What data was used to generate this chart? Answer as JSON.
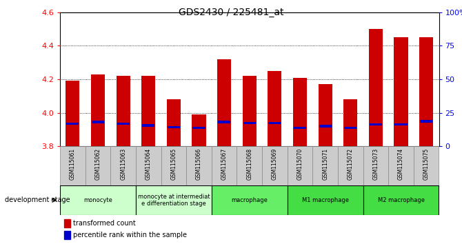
{
  "title": "GDS2430 / 225481_at",
  "samples": [
    "GSM115061",
    "GSM115062",
    "GSM115063",
    "GSM115064",
    "GSM115065",
    "GSM115066",
    "GSM115067",
    "GSM115068",
    "GSM115069",
    "GSM115070",
    "GSM115071",
    "GSM115072",
    "GSM115073",
    "GSM115074",
    "GSM115075"
  ],
  "transformed_count": [
    4.19,
    4.23,
    4.22,
    4.22,
    4.08,
    3.99,
    4.32,
    4.22,
    4.25,
    4.21,
    4.17,
    4.08,
    4.5,
    4.45,
    4.45
  ],
  "percentile_rank_pos": [
    3.935,
    3.945,
    3.935,
    3.925,
    3.915,
    3.91,
    3.945,
    3.94,
    3.94,
    3.91,
    3.92,
    3.91,
    3.93,
    3.93,
    3.95
  ],
  "ylim": [
    3.8,
    4.6
  ],
  "yticks_left": [
    3.8,
    4.0,
    4.2,
    4.4,
    4.6
  ],
  "yticks_right": [
    0,
    25,
    50,
    75,
    100
  ],
  "bar_color": "#cc0000",
  "blue_color": "#0000cc",
  "bar_width": 0.55,
  "stage_configs": [
    {
      "label": "monocyte",
      "start": 0,
      "end": 2,
      "color": "#ccffcc",
      "darker": false
    },
    {
      "label": "monocyte at intermediat\ne differentiation stage",
      "start": 3,
      "end": 5,
      "color": "#ccffcc",
      "darker": false
    },
    {
      "label": "macrophage",
      "start": 6,
      "end": 8,
      "color": "#66ee66",
      "darker": false
    },
    {
      "label": "M1 macrophage",
      "start": 9,
      "end": 11,
      "color": "#44dd44",
      "darker": true
    },
    {
      "label": "M2 macrophage",
      "start": 12,
      "end": 14,
      "color": "#44dd44",
      "darker": true
    }
  ],
  "dev_stage_label": "development stage",
  "legend_items": [
    {
      "label": "transformed count",
      "color": "#cc0000"
    },
    {
      "label": "percentile rank within the sample",
      "color": "#0000cc"
    }
  ]
}
